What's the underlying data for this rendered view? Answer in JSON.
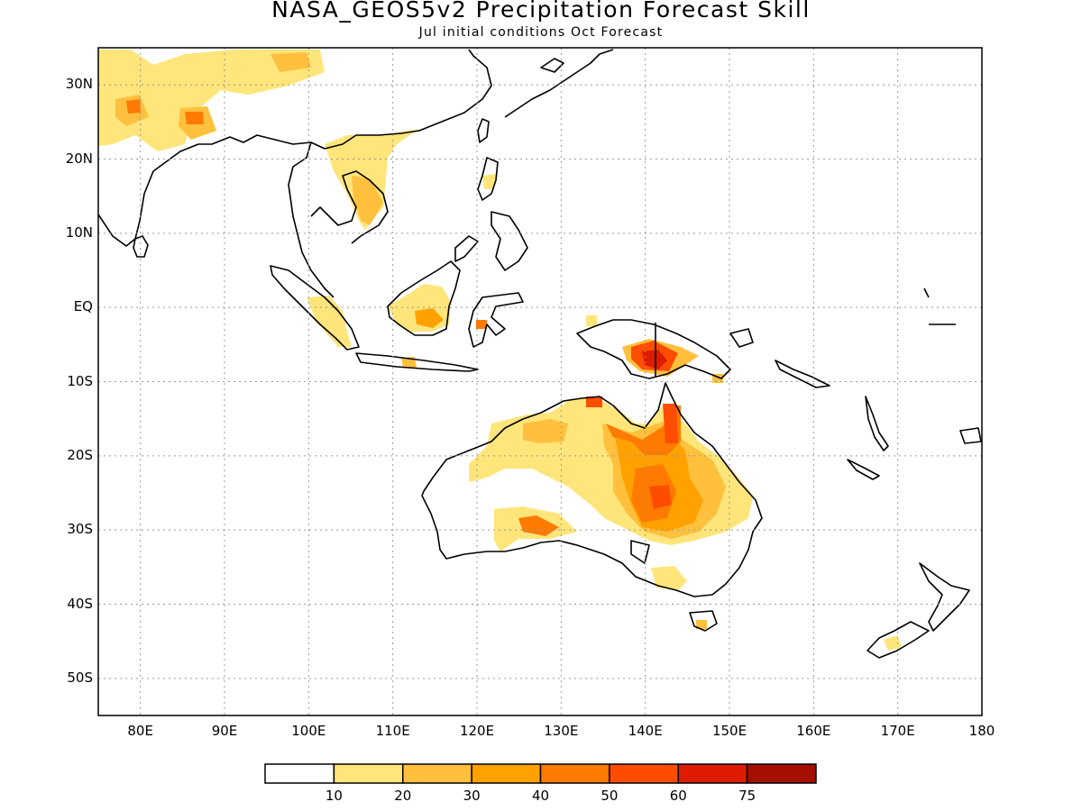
{
  "title": "NASA_GEOS5v2 Precipitation Forecast Skill",
  "subtitle": "Jul initial conditions  Oct Forecast",
  "map": {
    "lon_range": [
      75,
      180
    ],
    "lat_range": [
      -55,
      35
    ],
    "grid": "dotted"
  },
  "lat_labels": [
    {
      "text": "30N",
      "lat": 30
    },
    {
      "text": "20N",
      "lat": 20
    },
    {
      "text": "10N",
      "lat": 10
    },
    {
      "text": "EQ",
      "lat": 0
    },
    {
      "text": "10S",
      "lat": -10
    },
    {
      "text": "20S",
      "lat": -20
    },
    {
      "text": "30S",
      "lat": -30
    },
    {
      "text": "40S",
      "lat": -40
    },
    {
      "text": "50S",
      "lat": -50
    }
  ],
  "lon_labels": [
    {
      "text": "80E",
      "lon": 80
    },
    {
      "text": "90E",
      "lon": 90
    },
    {
      "text": "100E",
      "lon": 100
    },
    {
      "text": "110E",
      "lon": 110
    },
    {
      "text": "120E",
      "lon": 120
    },
    {
      "text": "130E",
      "lon": 130
    },
    {
      "text": "140E",
      "lon": 140
    },
    {
      "text": "150E",
      "lon": 150
    },
    {
      "text": "160E",
      "lon": 160
    },
    {
      "text": "170E",
      "lon": 170
    },
    {
      "text": "180",
      "lon": 180
    }
  ],
  "colorbar": {
    "colors": [
      "#ffffff",
      "#ffe57a",
      "#ffc03d",
      "#ffa200",
      "#ff7a00",
      "#ff4d00",
      "#dd1c00",
      "#a50f00"
    ],
    "labels": [
      "10",
      "20",
      "30",
      "40",
      "50",
      "60",
      "75"
    ]
  },
  "levels": {
    "l1": "#ffe57a",
    "l2": "#ffc03d",
    "l3": "#ffa200",
    "l4": "#ff7a00",
    "l5": "#ff4d00",
    "l6": "#dd1c00"
  }
}
